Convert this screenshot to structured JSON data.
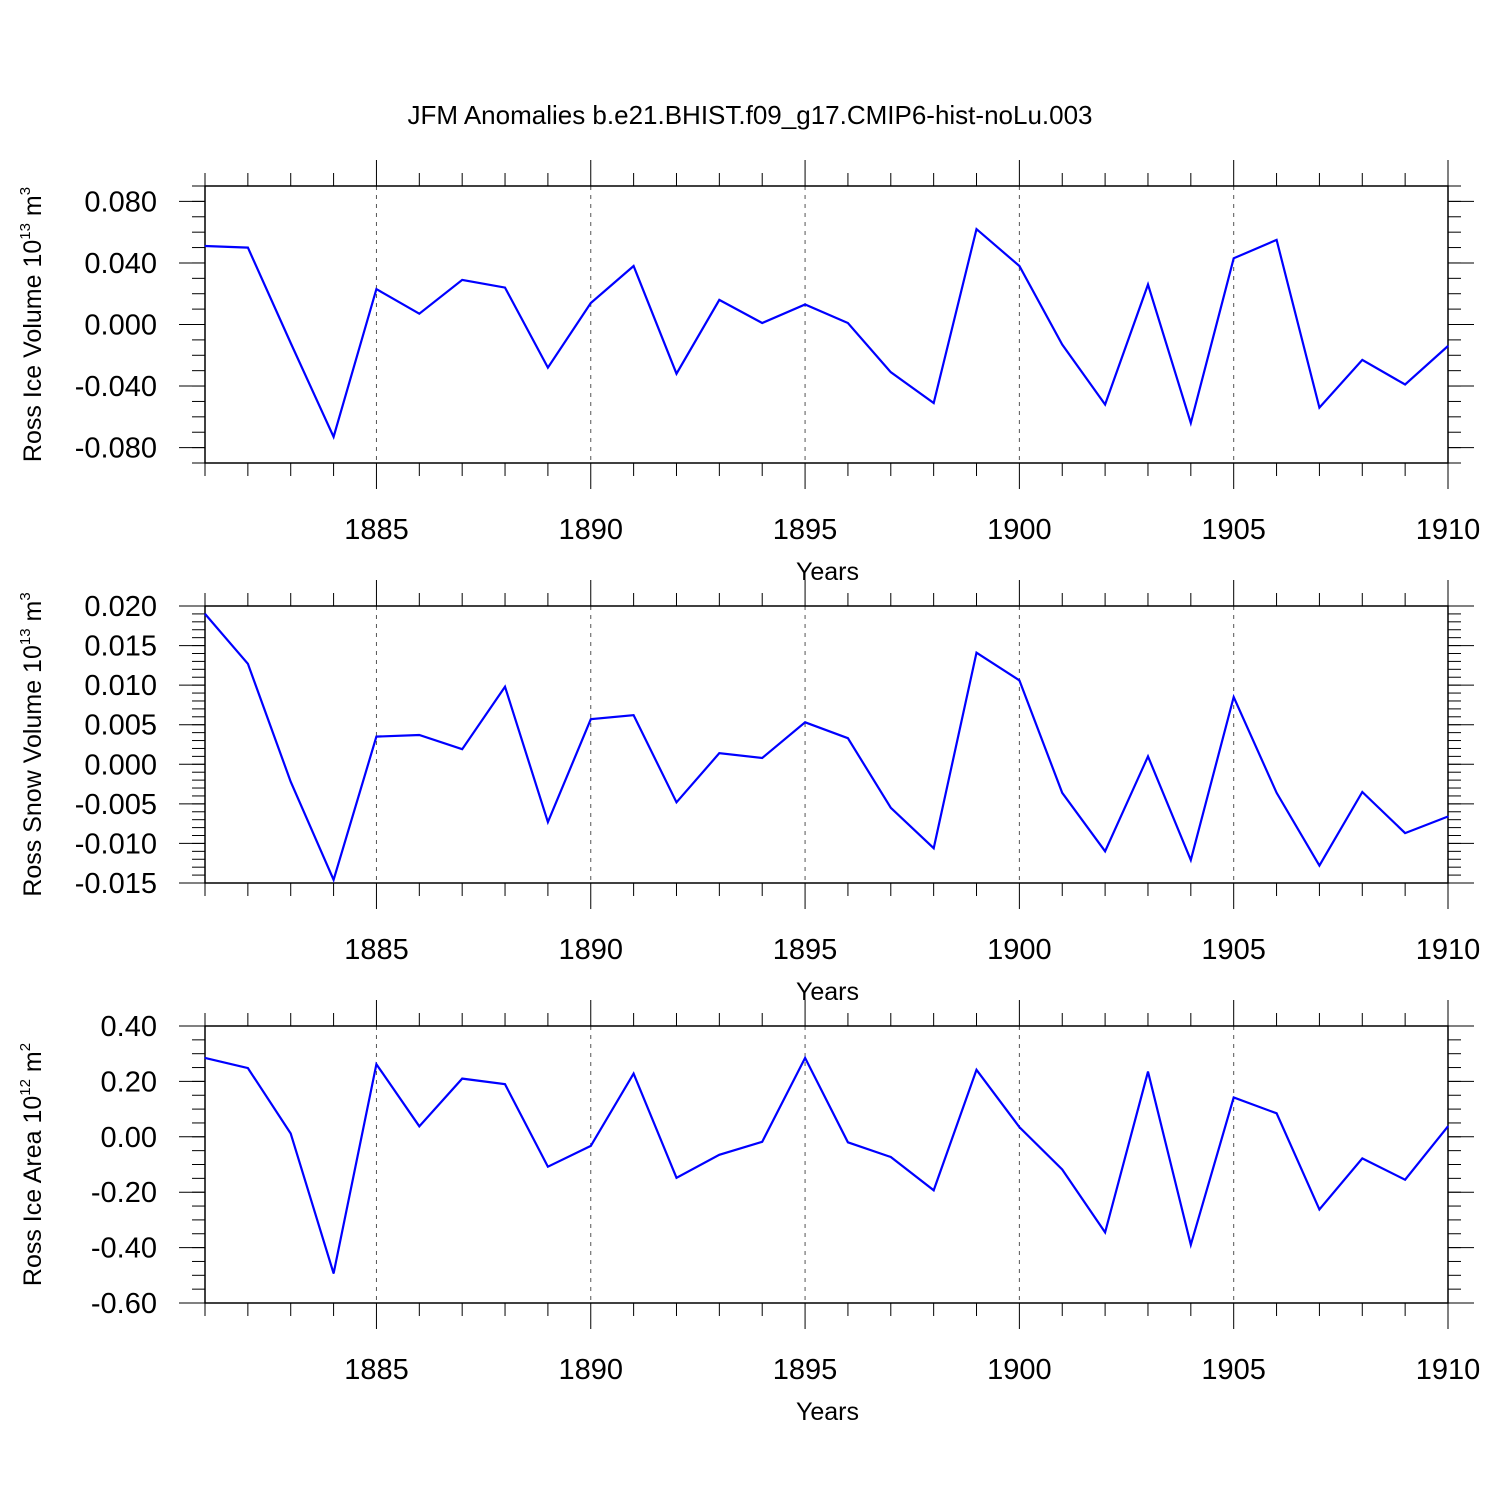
{
  "title": "JFM Anomalies b.e21.BHIST.f09_g17.CMIP6-hist-noLu.003",
  "colors": {
    "line": "#0000ff",
    "axes": "#000000",
    "grid": "#555555"
  },
  "chart_data": [
    {
      "type": "line",
      "ylabel": {
        "main": "Ross Ice Volume 10",
        "exp": "13",
        "unit": " m",
        "unit_exp": "3"
      },
      "xlabel": "Years",
      "xlim": [
        1881,
        1910
      ],
      "ylim": [
        -0.09,
        0.09
      ],
      "yticks": [
        -0.08,
        -0.04,
        0.0,
        0.04,
        0.08
      ],
      "ytick_labels": [
        "-0.080",
        "-0.040",
        "0.000",
        "0.040",
        "0.080"
      ],
      "yminor": 0.01,
      "xticks": [
        1885,
        1890,
        1895,
        1900,
        1905,
        1910
      ],
      "xtick_labels": [
        "1885",
        "1890",
        "1895",
        "1900",
        "1905",
        "1910"
      ],
      "x": [
        1881,
        1882,
        1883,
        1884,
        1885,
        1886,
        1887,
        1888,
        1889,
        1890,
        1891,
        1892,
        1893,
        1894,
        1895,
        1896,
        1897,
        1898,
        1899,
        1900,
        1901,
        1902,
        1903,
        1904,
        1905,
        1906,
        1907,
        1908,
        1909,
        1910
      ],
      "y": [
        0.051,
        0.05,
        -0.012,
        -0.073,
        0.023,
        0.007,
        0.029,
        0.024,
        -0.028,
        0.014,
        0.038,
        -0.032,
        0.016,
        0.001,
        0.013,
        0.001,
        -0.031,
        -0.051,
        0.062,
        0.038,
        -0.013,
        -0.052,
        0.026,
        -0.064,
        0.043,
        0.055,
        -0.054,
        -0.023,
        -0.039,
        -0.014
      ],
      "grid": "dashed vertical at major x ticks"
    },
    {
      "type": "line",
      "ylabel": {
        "main": "Ross Snow Volume 10",
        "exp": "13",
        "unit": " m",
        "unit_exp": "3"
      },
      "xlabel": "Years",
      "xlim": [
        1881,
        1910
      ],
      "ylim": [
        -0.015,
        0.02
      ],
      "yticks": [
        -0.015,
        -0.01,
        -0.005,
        0.0,
        0.005,
        0.01,
        0.015,
        0.02
      ],
      "ytick_labels": [
        "-0.015",
        "-0.010",
        "-0.005",
        "0.000",
        "0.005",
        "0.010",
        "0.015",
        "0.020"
      ],
      "yminor": 0.001,
      "xticks": [
        1885,
        1890,
        1895,
        1900,
        1905,
        1910
      ],
      "xtick_labels": [
        "1885",
        "1890",
        "1895",
        "1900",
        "1905",
        "1910"
      ],
      "x": [
        1881,
        1882,
        1883,
        1884,
        1885,
        1886,
        1887,
        1888,
        1889,
        1890,
        1891,
        1892,
        1893,
        1894,
        1895,
        1896,
        1897,
        1898,
        1899,
        1900,
        1901,
        1902,
        1903,
        1904,
        1905,
        1906,
        1907,
        1908,
        1909,
        1910
      ],
      "y": [
        0.019,
        0.0127,
        -0.0022,
        -0.0146,
        0.0035,
        0.0037,
        0.0019,
        0.0098,
        -0.0073,
        0.0057,
        0.0062,
        -0.0048,
        0.0014,
        0.0008,
        0.0053,
        0.0033,
        -0.0055,
        -0.0106,
        0.0141,
        0.0106,
        -0.0036,
        -0.011,
        0.001,
        -0.0121,
        0.0085,
        -0.0036,
        -0.0128,
        -0.0035,
        -0.0087,
        -0.0066
      ],
      "grid": "dashed vertical at major x ticks"
    },
    {
      "type": "line",
      "ylabel": {
        "main": "Ross Ice Area 10",
        "exp": "12",
        "unit": " m",
        "unit_exp": "2"
      },
      "xlabel": "Years",
      "xlim": [
        1881,
        1910
      ],
      "ylim": [
        -0.6,
        0.4
      ],
      "yticks": [
        -0.6,
        -0.4,
        -0.2,
        0.0,
        0.2,
        0.4
      ],
      "ytick_labels": [
        "-0.60",
        "-0.40",
        "-0.20",
        "0.00",
        "0.20",
        "0.40"
      ],
      "yminor": 0.05,
      "xticks": [
        1885,
        1890,
        1895,
        1900,
        1905,
        1910
      ],
      "xtick_labels": [
        "1885",
        "1890",
        "1895",
        "1900",
        "1905",
        "1910"
      ],
      "x": [
        1881,
        1882,
        1883,
        1884,
        1885,
        1886,
        1887,
        1888,
        1889,
        1890,
        1891,
        1892,
        1893,
        1894,
        1895,
        1896,
        1897,
        1898,
        1899,
        1900,
        1901,
        1902,
        1903,
        1904,
        1905,
        1906,
        1907,
        1908,
        1909,
        1910
      ],
      "y": [
        0.285,
        0.248,
        0.012,
        -0.493,
        0.262,
        0.038,
        0.21,
        0.19,
        -0.108,
        -0.033,
        0.228,
        -0.148,
        -0.065,
        -0.018,
        0.285,
        -0.02,
        -0.073,
        -0.193,
        0.242,
        0.035,
        -0.118,
        -0.345,
        0.235,
        -0.39,
        0.142,
        0.085,
        -0.262,
        -0.078,
        -0.155,
        0.038
      ],
      "grid": "dashed vertical at major x ticks"
    }
  ]
}
